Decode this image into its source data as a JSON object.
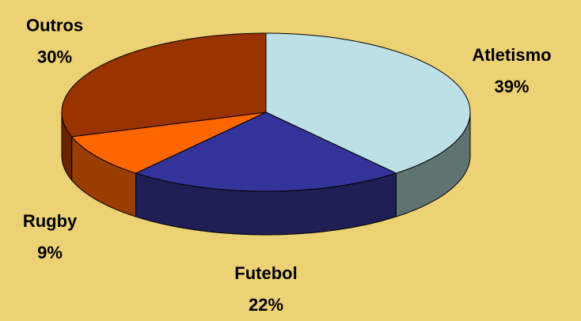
{
  "chart_data": {
    "type": "pie",
    "categories": [
      "Atletismo",
      "Futebol",
      "Rugby",
      "Outros"
    ],
    "values": [
      39,
      22,
      9,
      30
    ],
    "value_labels": [
      "39%",
      "22%",
      "9%",
      "30%"
    ],
    "colors": [
      "#bde0e6",
      "#333399",
      "#ff6600",
      "#993300"
    ],
    "side_colors": [
      "#5f7373",
      "#1f1f55",
      "#993d00",
      "#6b2400"
    ]
  }
}
